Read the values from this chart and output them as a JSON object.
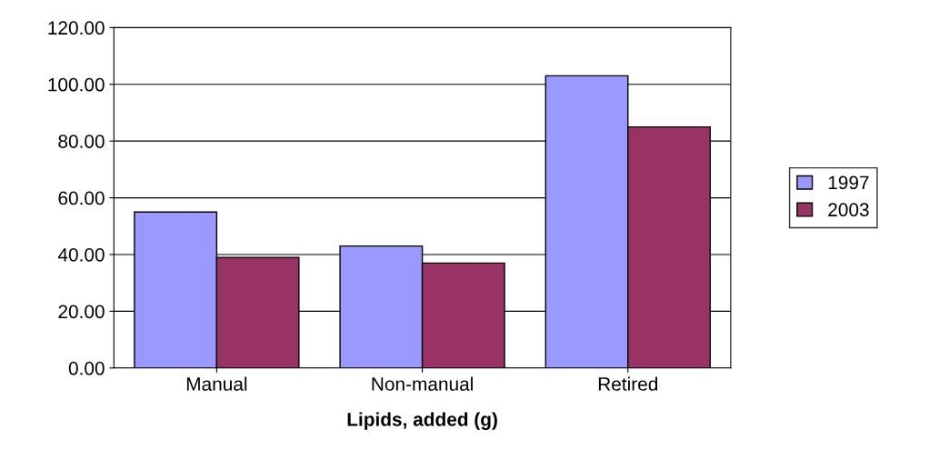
{
  "chart_data": {
    "type": "bar",
    "xlabel": "Lipids, added (g)",
    "categories": [
      "Manual",
      "Non-manual",
      "Retired"
    ],
    "series": [
      {
        "name": "1997",
        "color": "#9999ff",
        "values": [
          55,
          43,
          103
        ]
      },
      {
        "name": "2003",
        "color": "#993366",
        "values": [
          39,
          37,
          85
        ]
      }
    ],
    "ylim": [
      0,
      120
    ],
    "yticks": [
      {
        "value": 0,
        "label": "0.00"
      },
      {
        "value": 20,
        "label": "20.00"
      },
      {
        "value": 40,
        "label": "40.00"
      },
      {
        "value": 60,
        "label": "60.00"
      },
      {
        "value": 80,
        "label": "80.00"
      },
      {
        "value": 100,
        "label": "100.00"
      },
      {
        "value": 120,
        "label": "120.00"
      }
    ],
    "grid": "y",
    "legend": "right"
  }
}
